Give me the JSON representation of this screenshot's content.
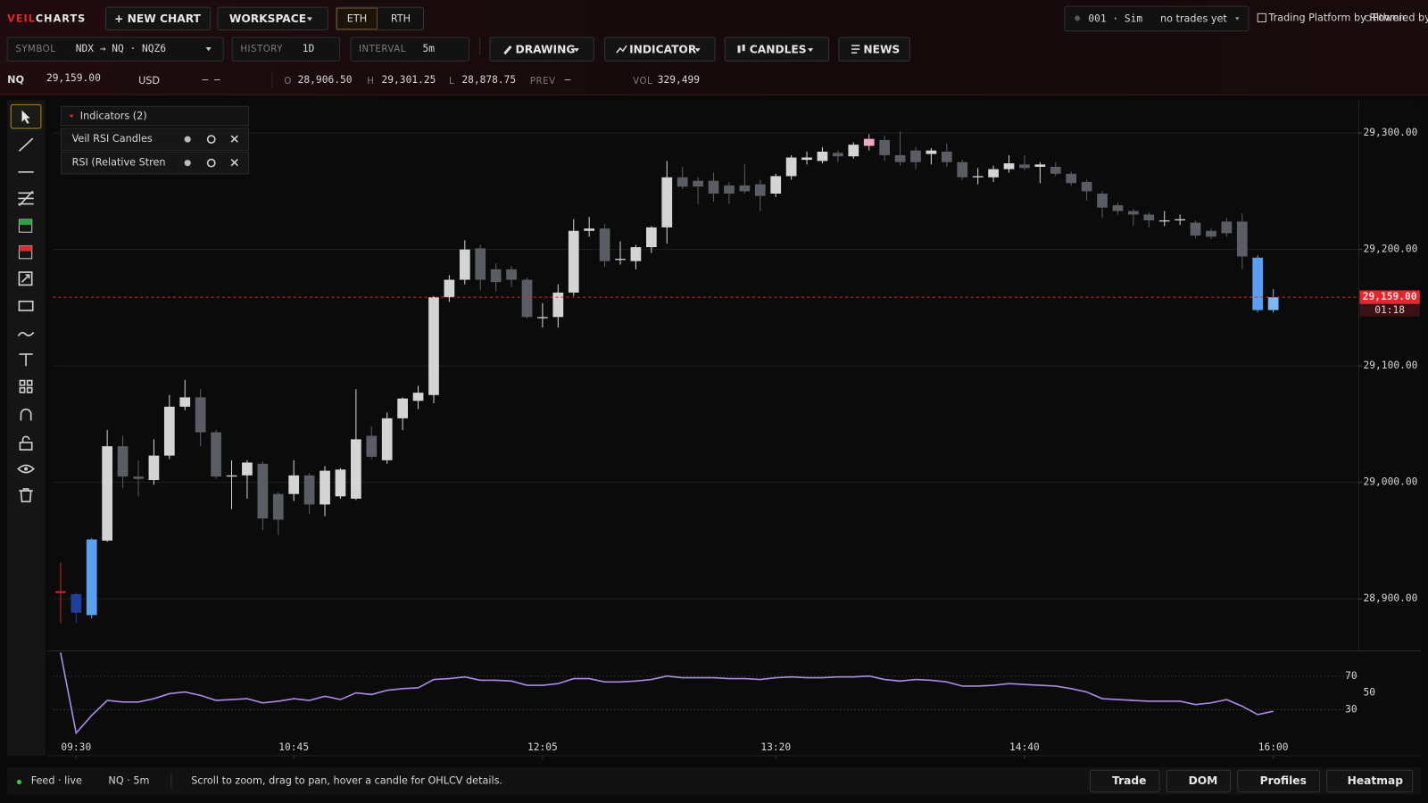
{
  "brand": {
    "prefix": "VEIL",
    "name": "CHARTS"
  },
  "top_bar": {
    "new_chart": "+ NEW CHART",
    "workspace": "WORKSPACE",
    "sessions": [
      "ETH",
      "RTH"
    ],
    "account": "001 · Sim",
    "trades": "no trades yet",
    "platform": "Trading Platform by Rithmic",
    "powered": "Powered by OMNE"
  },
  "toolbar": {
    "symbol_label": "SYMBOL",
    "symbol": "NDX → NQ · NQZ6",
    "history_label": "HISTORY",
    "history": "1D",
    "interval_label": "INTERVAL",
    "interval": "5m",
    "drawing": "DRAWING",
    "indicator": "INDICATOR",
    "candles": "CANDLES",
    "news": "NEWS"
  },
  "quote": {
    "symbol": "NQ",
    "last": "29,159.00",
    "currency": "USD",
    "change": "– –",
    "open_label": "O",
    "open": "28,906.50",
    "high_label": "H",
    "high": "29,301.25",
    "low_label": "L",
    "low": "28,878.75",
    "prev_label": "PREV",
    "prev": "–",
    "vol_label": "VOL",
    "volume": "329,499"
  },
  "indicators": {
    "title": "Indicators (2)",
    "items": [
      "Veil RSI Candles",
      "RSI (Relative Stren"
    ]
  },
  "chart_data": [
    {
      "type": "candlestick",
      "open": [
        28906.5,
        28904,
        28886,
        28950,
        29031,
        29005,
        29002,
        29023,
        29065,
        29073,
        29043,
        29005,
        29006,
        29016,
        28990,
        28990,
        29006,
        28981,
        28988,
        28986,
        29040,
        29019,
        29055,
        29070,
        29075,
        29159,
        29174,
        29201,
        29183,
        29183,
        29174,
        29141,
        29142,
        29163,
        29216,
        29218,
        29191,
        29190,
        29202,
        29219,
        29262,
        29259,
        29259,
        29255,
        29255,
        29256,
        29248,
        29263,
        29277,
        29276,
        29283,
        29280,
        29289,
        29294,
        29281,
        29285,
        29282,
        29284,
        29275,
        29262,
        29262,
        29269,
        29273,
        29271,
        29271,
        29265,
        29258,
        29248,
        29238,
        29233,
        29230,
        29225,
        29225,
        29223,
        29216,
        29224,
        29224,
        29193,
        29148
      ],
      "high": [
        28931,
        28905,
        28952,
        29045,
        29040,
        29019,
        29037,
        29075,
        29088,
        29080,
        29045,
        29019,
        29019,
        29018,
        28992,
        29019,
        29008,
        29014,
        29012,
        29080,
        29048,
        29060,
        29073,
        29083,
        29160,
        29178,
        29208,
        29204,
        29188,
        29186,
        29176,
        29154,
        29170,
        29226,
        29228,
        29222,
        29207,
        29204,
        29220,
        29276,
        29271,
        29262,
        29266,
        29258,
        29273,
        29260,
        29265,
        29281,
        29284,
        29288,
        29285,
        29292,
        29299,
        29298,
        29301.25,
        29288,
        29287,
        29291,
        29277,
        29270,
        29272,
        29281,
        29281,
        29275,
        29275,
        29267,
        29260,
        29250,
        29240,
        29235,
        29232,
        29233,
        29230,
        29225,
        29218,
        29227,
        29231,
        29195,
        29166
      ],
      "low": [
        28878.75,
        28879,
        28883,
        28949,
        28995,
        28988,
        28998,
        29020,
        29062,
        29031,
        29003,
        28977,
        28986,
        28959,
        28955,
        28984,
        28973,
        28971,
        28986,
        28985,
        29020,
        29016,
        29045,
        29063,
        29068,
        29155,
        29170,
        29165,
        29164,
        29168,
        29141,
        29133,
        29133,
        29160,
        29211,
        29185,
        29187,
        29183,
        29197,
        29205,
        29252,
        29239,
        29241,
        29239,
        29248,
        29233,
        29245,
        29260,
        29273,
        29274,
        29275,
        29278,
        29285,
        29276,
        29272,
        29269,
        29273,
        29271,
        29260,
        29256,
        29258,
        29266,
        29268,
        29257,
        29263,
        29255,
        29242,
        29227,
        29230,
        29220,
        29219,
        29220,
        29221,
        29210,
        29209,
        29211,
        29183,
        29146,
        29146
      ],
      "close": [
        28905,
        28888,
        28951,
        29031,
        29005,
        29003,
        29023,
        29065,
        29073,
        29043,
        29005,
        29006,
        29017,
        28969,
        28968,
        29006,
        28981,
        29010,
        29011,
        29037,
        29022,
        29055,
        29072,
        29077,
        29159,
        29174,
        29200,
        29174,
        29172,
        29174,
        29142,
        29142,
        29163,
        29216,
        29218,
        29190,
        29192,
        29202,
        29219,
        29262,
        29254,
        29254,
        29248,
        29248,
        29250,
        29246,
        29263,
        29279,
        29279,
        29284,
        29280,
        29290,
        29295,
        29281,
        29275,
        29275,
        29285,
        29275,
        29262,
        29263,
        29269,
        29274,
        29270,
        29273,
        29265,
        29257,
        29250,
        29236,
        29233,
        29230,
        29225,
        29225,
        29226,
        29212,
        29211,
        29214,
        29194,
        29148,
        29159
      ],
      "colors": [
        "#c62828",
        "#1f3f99",
        "#5b9ff0",
        "#d4d4d4",
        "#5a5d63",
        "#5a5d63",
        "#d4d4d4",
        "#d4d4d4",
        "#d4d4d4",
        "#5a5d63",
        "#5a5d63",
        "#d4d4d4",
        "#d4d4d4",
        "#5a5d63",
        "#5a5d63",
        "#d4d4d4",
        "#5a5d63",
        "#d4d4d4",
        "#d4d4d4",
        "#d4d4d4",
        "#5a5d63",
        "#d4d4d4",
        "#d4d4d4",
        "#d4d4d4",
        "#d4d4d4",
        "#d4d4d4",
        "#d4d4d4",
        "#5a5d63",
        "#5a5d63",
        "#5a5d63",
        "#5a5d63",
        "#d4d4d4",
        "#d4d4d4",
        "#d4d4d4",
        "#d4d4d4",
        "#5a5d63",
        "#d4d4d4",
        "#d4d4d4",
        "#d4d4d4",
        "#d4d4d4",
        "#5a5d63",
        "#5a5d63",
        "#5a5d63",
        "#5a5d63",
        "#5a5d63",
        "#5a5d63",
        "#d4d4d4",
        "#d4d4d4",
        "#d4d4d4",
        "#d4d4d4",
        "#5a5d63",
        "#d4d4d4",
        "#f2a9c6",
        "#5a5d63",
        "#5a5d63",
        "#5a5d63",
        "#d4d4d4",
        "#5a5d63",
        "#5a5d63",
        "#d4d4d4",
        "#d4d4d4",
        "#d4d4d4",
        "#5a5d63",
        "#d4d4d4",
        "#5a5d63",
        "#5a5d63",
        "#5a5d63",
        "#5a5d63",
        "#5a5d63",
        "#5a5d63",
        "#5a5d63",
        "#d4d4d4",
        "#d4d4d4",
        "#5a5d63",
        "#5a5d63",
        "#5a5d63",
        "#5a5d63",
        "#5b9ff0",
        "#7fb6f3"
      ],
      "xlim": [
        -0.5,
        83.5
      ],
      "xticks": [
        {
          "value": 1,
          "label": "09:30"
        },
        {
          "value": 15,
          "label": "10:45"
        },
        {
          "value": 31,
          "label": "12:05"
        },
        {
          "value": 46,
          "label": "13:20"
        },
        {
          "value": 62,
          "label": "14:40"
        },
        {
          "value": 78,
          "label": "16:00"
        }
      ],
      "ylim": [
        28856,
        29322
      ],
      "yticks": [
        {
          "value": 28900,
          "label": "28,900.00"
        },
        {
          "value": 29000,
          "label": "29,000.00"
        },
        {
          "value": 29100,
          "label": "29,100.00"
        },
        {
          "value": 29200,
          "label": "29,200.00"
        },
        {
          "value": 29300,
          "label": "29,300.00"
        }
      ],
      "grid": true,
      "last_price": {
        "value": 29159,
        "label": "29,159.00"
      },
      "last_color": "#e0282e",
      "countdown": "01:18"
    },
    {
      "type": "line",
      "values": [
        98,
        2,
        23,
        41,
        39,
        39,
        43,
        49,
        51,
        47,
        41,
        42,
        43,
        38,
        40,
        43,
        41,
        46,
        42,
        50,
        48,
        53,
        55,
        56,
        66,
        67,
        69,
        65,
        65,
        64,
        59,
        59,
        61,
        67,
        67,
        63,
        63,
        64,
        66,
        70,
        68,
        68,
        68,
        67,
        67,
        66,
        68,
        69,
        68,
        68,
        69,
        69,
        70,
        66,
        64,
        66,
        65,
        63,
        58,
        58,
        59,
        61,
        60,
        59,
        58,
        55,
        51,
        43,
        42,
        41,
        40,
        40,
        40,
        36,
        38,
        42,
        34,
        24,
        28
      ],
      "color": "#a98ae8",
      "xlim": [
        -0.5,
        83.5
      ],
      "ylim": [
        -25,
        100
      ],
      "yticks": [
        30,
        50,
        70
      ],
      "grid": true
    }
  ],
  "footer": {
    "feed": "Feed · live",
    "instrument": "NQ · 5m",
    "hint": "Scroll to zoom, drag to pan, hover a candle for OHLCV details.",
    "buttons": [
      "Trade",
      "DOM",
      "Profiles",
      "Heatmap"
    ]
  }
}
